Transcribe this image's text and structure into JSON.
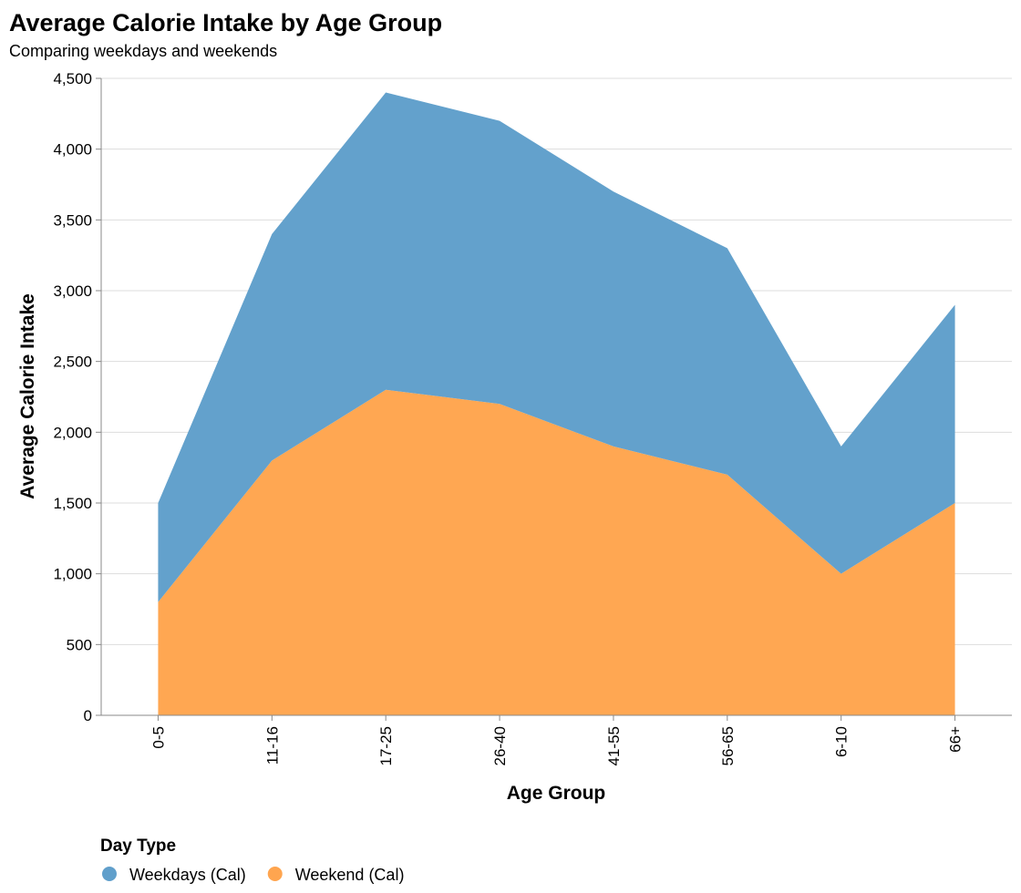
{
  "chart_data": {
    "type": "area",
    "stacked": true,
    "title": "Average Calorie Intake by Age Group",
    "subtitle": "Comparing weekdays and weekends",
    "xlabel": "Age Group",
    "ylabel": "Average Calorie Intake",
    "categories": [
      "0-5",
      "11-16",
      "17-25",
      "26-40",
      "41-55",
      "56-65",
      "6-10",
      "66+"
    ],
    "series": [
      {
        "name": "Weekend (Cal)",
        "values": [
          800,
          1800,
          2300,
          2200,
          1900,
          1700,
          1000,
          1500
        ],
        "color": "#ffa54f"
      },
      {
        "name": "Weekdays (Cal)",
        "values": [
          700,
          1600,
          2100,
          2000,
          1800,
          1600,
          900,
          1400
        ],
        "color": "#609fcb"
      }
    ],
    "ylim": [
      0,
      4500
    ],
    "yticks": [
      0,
      500,
      1000,
      1500,
      2000,
      2500,
      3000,
      3500,
      4000,
      4500
    ],
    "grid": true,
    "legend": {
      "title": "Day Type",
      "placement": "bottom-left",
      "entries": [
        {
          "label": "Weekdays (Cal)",
          "color": "#609fcb"
        },
        {
          "label": "Weekend (Cal)",
          "color": "#ffa54f"
        }
      ]
    }
  }
}
